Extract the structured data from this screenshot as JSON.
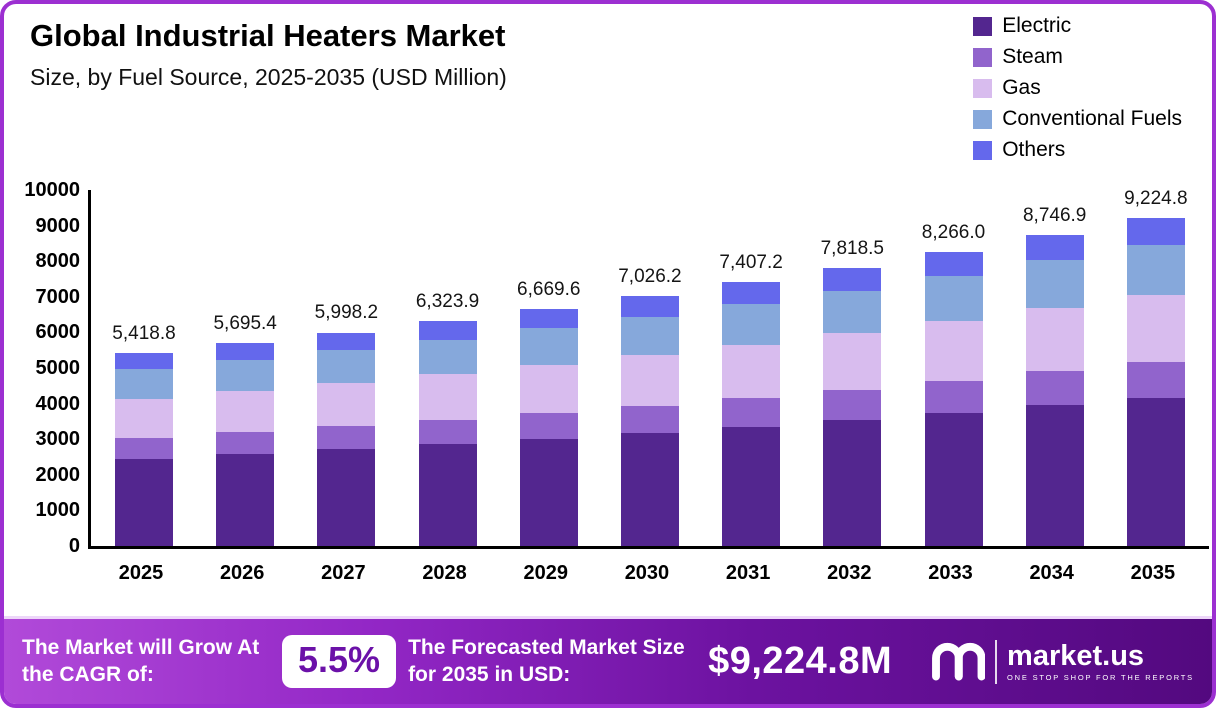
{
  "frame": {
    "border_color": "#9C2FD1"
  },
  "chart_data": {
    "type": "bar",
    "stacked": true,
    "title": "Global Industrial Heaters Market",
    "subtitle": "Size, by Fuel Source, 2025-2035 (USD Million)",
    "categories": [
      "2025",
      "2026",
      "2027",
      "2028",
      "2029",
      "2030",
      "2031",
      "2032",
      "2033",
      "2034",
      "2035"
    ],
    "series": [
      {
        "name": "Electric",
        "color": "#53268F",
        "values": [
          2449.3,
          2574.3,
          2711.2,
          2858.4,
          3014.7,
          3175.8,
          3348.1,
          3534.0,
          3736.2,
          3953.6,
          4169.6
        ]
      },
      {
        "name": "Steam",
        "color": "#9164CC",
        "values": [
          590.6,
          620.8,
          653.8,
          689.3,
          727.0,
          765.9,
          807.4,
          852.2,
          901.0,
          953.4,
          1006.5
        ]
      },
      {
        "name": "Gas",
        "color": "#D8BCEE",
        "values": [
          1100.0,
          1156.2,
          1217.6,
          1283.8,
          1353.9,
          1426.3,
          1503.7,
          1587.2,
          1678.0,
          1775.6,
          1872.6
        ]
      },
      {
        "name": "Conventional Fuels",
        "color": "#86A8DB",
        "values": [
          829.1,
          871.4,
          917.7,
          967.6,
          1020.4,
          1075.0,
          1133.3,
          1196.2,
          1264.7,
          1338.3,
          1411.4
        ]
      },
      {
        "name": "Others",
        "color": "#6468EC",
        "values": [
          449.8,
          472.7,
          497.9,
          524.8,
          553.6,
          583.2,
          614.7,
          648.9,
          686.1,
          726.0,
          764.7
        ]
      }
    ],
    "totals": [
      5418.8,
      5695.4,
      5998.2,
      6323.9,
      6669.6,
      7026.2,
      7407.2,
      7818.5,
      8266.0,
      8746.9,
      9224.8
    ],
    "total_labels": [
      "5,418.8",
      "5,695.4",
      "5,998.2",
      "6,323.9",
      "6,669.6",
      "7,026.2",
      "7,407.2",
      "7,818.5",
      "8,266.0",
      "8,746.9",
      "9,224.8"
    ],
    "xlabel": "",
    "ylabel": "",
    "ylim": [
      0,
      10000
    ],
    "yticks": [
      0,
      1000,
      2000,
      3000,
      4000,
      5000,
      6000,
      7000,
      8000,
      9000,
      10000
    ],
    "grid": false,
    "legend_position": "top-right"
  },
  "banner": {
    "cagr_text": "The Market will Grow At the CAGR of:",
    "cagr_value": "5.5%",
    "forecast_text": "The Forecasted Market Size for 2035 in USD:",
    "forecast_value": "$9,224.8M",
    "brand": "market.us",
    "brand_tagline": "ONE STOP SHOP FOR THE REPORTS"
  }
}
